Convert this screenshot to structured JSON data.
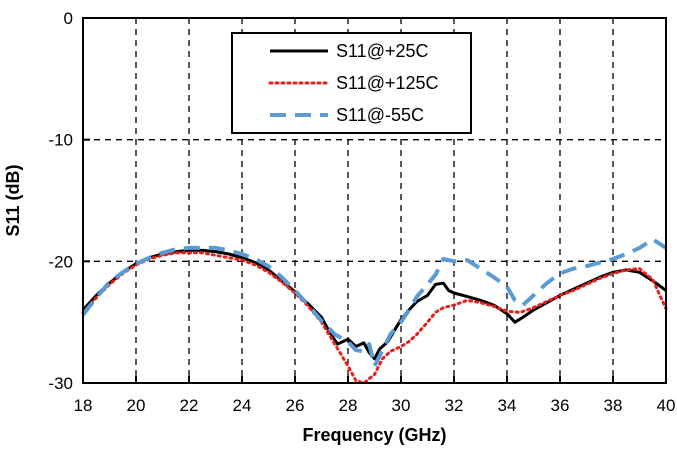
{
  "chart_data": {
    "type": "line",
    "title": "",
    "xlabel": "Frequency (GHz)",
    "ylabel": "S11 (dB)",
    "xlim": [
      18,
      40
    ],
    "ylim": [
      -30,
      0
    ],
    "xticks": [
      18,
      20,
      22,
      24,
      26,
      28,
      30,
      32,
      34,
      36,
      38,
      40
    ],
    "yticks": [
      0,
      -10,
      -20,
      -30
    ],
    "grid": true,
    "legend_position": "top-center",
    "series": [
      {
        "name": "S11@+25C",
        "color": "#000000",
        "style": "solid",
        "x": [
          18,
          18.5,
          19,
          19.5,
          20,
          20.5,
          21,
          21.5,
          22,
          22.5,
          23,
          23.5,
          24,
          24.5,
          25,
          25.5,
          26,
          26.5,
          27,
          27.3,
          27.6,
          28,
          28.3,
          28.6,
          28.8,
          29,
          29.2,
          29.5,
          29.8,
          30,
          30.3,
          30.6,
          31,
          31.3,
          31.6,
          31.8,
          32,
          32.5,
          33,
          33.5,
          34,
          34.3,
          34.6,
          35,
          35.5,
          36,
          36.5,
          37,
          37.5,
          38,
          38.5,
          39,
          39.5,
          40
        ],
        "y": [
          -24.0,
          -22.8,
          -21.8,
          -20.9,
          -20.2,
          -19.7,
          -19.4,
          -19.2,
          -19.1,
          -19.1,
          -19.2,
          -19.4,
          -19.7,
          -20.1,
          -20.7,
          -21.6,
          -22.5,
          -23.5,
          -24.6,
          -25.8,
          -26.8,
          -26.4,
          -27.0,
          -26.7,
          -27.5,
          -28.0,
          -27.2,
          -26.6,
          -25.5,
          -24.8,
          -24.0,
          -23.3,
          -22.8,
          -21.9,
          -21.8,
          -22.4,
          -22.6,
          -22.9,
          -23.2,
          -23.6,
          -24.3,
          -25.0,
          -24.6,
          -24.0,
          -23.4,
          -22.8,
          -22.3,
          -21.8,
          -21.3,
          -20.9,
          -20.7,
          -20.9,
          -21.6,
          -22.4
        ]
      },
      {
        "name": "S11@+125C",
        "color": "#e8201c",
        "style": "dotted",
        "x": [
          18,
          18.5,
          19,
          19.5,
          20,
          20.5,
          21,
          21.5,
          22,
          22.5,
          23,
          23.5,
          24,
          24.5,
          25,
          25.5,
          26,
          26.5,
          27,
          27.5,
          28,
          28.3,
          28.6,
          29,
          29.3,
          29.6,
          30,
          30.3,
          30.6,
          31,
          31.3,
          31.6,
          32,
          32.5,
          33,
          33.5,
          34,
          34.5,
          35,
          35.5,
          36,
          36.5,
          37,
          37.5,
          38,
          38.5,
          39,
          39.5,
          40
        ],
        "y": [
          -24.2,
          -23.0,
          -21.9,
          -21.0,
          -20.3,
          -19.8,
          -19.5,
          -19.3,
          -19.3,
          -19.3,
          -19.5,
          -19.7,
          -19.9,
          -20.3,
          -20.9,
          -21.7,
          -22.6,
          -23.7,
          -25.0,
          -26.8,
          -28.6,
          -29.8,
          -30.0,
          -29.3,
          -28.0,
          -27.4,
          -27.0,
          -26.6,
          -26.0,
          -25.0,
          -24.2,
          -23.8,
          -23.6,
          -23.2,
          -23.4,
          -23.7,
          -24.1,
          -24.2,
          -23.8,
          -23.3,
          -22.8,
          -22.4,
          -21.9,
          -21.4,
          -21.0,
          -20.7,
          -20.6,
          -21.5,
          -23.9
        ]
      },
      {
        "name": "S11@-55C",
        "color": "#5b9bd5",
        "style": "dashed",
        "x": [
          18,
          18.5,
          19,
          19.5,
          20,
          20.5,
          21,
          21.5,
          22,
          22.5,
          23,
          23.5,
          24,
          24.5,
          25,
          25.5,
          26,
          26.5,
          27,
          27.5,
          28,
          28.3,
          28.6,
          28.8,
          29,
          29.3,
          29.6,
          30,
          30.3,
          30.6,
          31,
          31.3,
          31.6,
          32,
          32.5,
          33,
          33.5,
          34,
          34.3,
          34.6,
          35,
          35.5,
          36,
          36.5,
          37,
          37.5,
          38,
          38.5,
          39,
          39.5,
          40
        ],
        "y": [
          -24.4,
          -23.0,
          -21.7,
          -20.9,
          -20.2,
          -19.7,
          -19.3,
          -19.0,
          -18.9,
          -18.9,
          -18.9,
          -19.1,
          -19.4,
          -19.8,
          -20.4,
          -21.3,
          -22.4,
          -23.6,
          -24.9,
          -26.0,
          -26.6,
          -27.3,
          -27.4,
          -26.8,
          -28.6,
          -27.3,
          -26.0,
          -25.0,
          -24.0,
          -22.9,
          -21.9,
          -21.1,
          -19.8,
          -20.0,
          -19.9,
          -20.6,
          -21.3,
          -22.1,
          -23.2,
          -23.6,
          -22.8,
          -21.8,
          -21.0,
          -20.6,
          -20.4,
          -20.1,
          -19.8,
          -19.4,
          -18.9,
          -18.2,
          -18.9
        ]
      }
    ]
  }
}
